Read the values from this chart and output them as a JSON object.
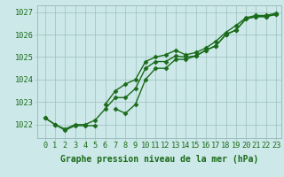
{
  "x": [
    0,
    1,
    2,
    3,
    4,
    5,
    6,
    7,
    8,
    9,
    10,
    11,
    12,
    13,
    14,
    15,
    16,
    17,
    18,
    19,
    20,
    21,
    22,
    23
  ],
  "line_upper": [
    1022.3,
    1022.0,
    null,
    null,
    null,
    null,
    1022.9,
    1023.5,
    1023.8,
    1024.0,
    1024.8,
    1025.0,
    1025.1,
    1025.3,
    1025.1,
    1025.2,
    1025.4,
    1025.7,
    1026.1,
    1026.4,
    1026.75,
    1026.85,
    1026.85,
    1026.95
  ],
  "line_main": [
    1022.3,
    1022.0,
    1021.8,
    1022.0,
    1022.0,
    1022.2,
    1022.7,
    1023.2,
    1023.2,
    1023.6,
    1024.5,
    1024.8,
    1024.8,
    1025.05,
    1025.0,
    1025.05,
    1025.3,
    1025.5,
    1026.0,
    1026.2,
    1026.7,
    1026.8,
    1026.8,
    1026.9
  ],
  "line_lower": [
    null,
    1022.0,
    1021.75,
    1021.95,
    1021.95,
    1021.95,
    null,
    1022.7,
    1022.5,
    1022.9,
    1024.0,
    1024.5,
    1024.5,
    1024.9,
    1024.9,
    1025.05,
    1025.3,
    1025.5,
    1026.0,
    1026.2,
    1026.7,
    1026.8,
    1026.8,
    1026.9
  ],
  "ylim": [
    1021.4,
    1027.3
  ],
  "yticks": [
    1022,
    1023,
    1024,
    1025,
    1026,
    1027
  ],
  "xtick_labels": [
    "0",
    "1",
    "2",
    "3",
    "4",
    "5",
    "6",
    "7",
    "8",
    "9",
    "10",
    "11",
    "12",
    "13",
    "14",
    "15",
    "16",
    "17",
    "18",
    "19",
    "20",
    "21",
    "22",
    "23"
  ],
  "xlabel": "Graphe pression niveau de la mer (hPa)",
  "line_color": "#1a6b1a",
  "bg_color": "#cce8e8",
  "grid_color": "#9dbfbf",
  "marker": "D",
  "marker_size": 2.5,
  "line_width": 1.0,
  "xlabel_fontsize": 7.0,
  "tick_fontsize": 6.2
}
